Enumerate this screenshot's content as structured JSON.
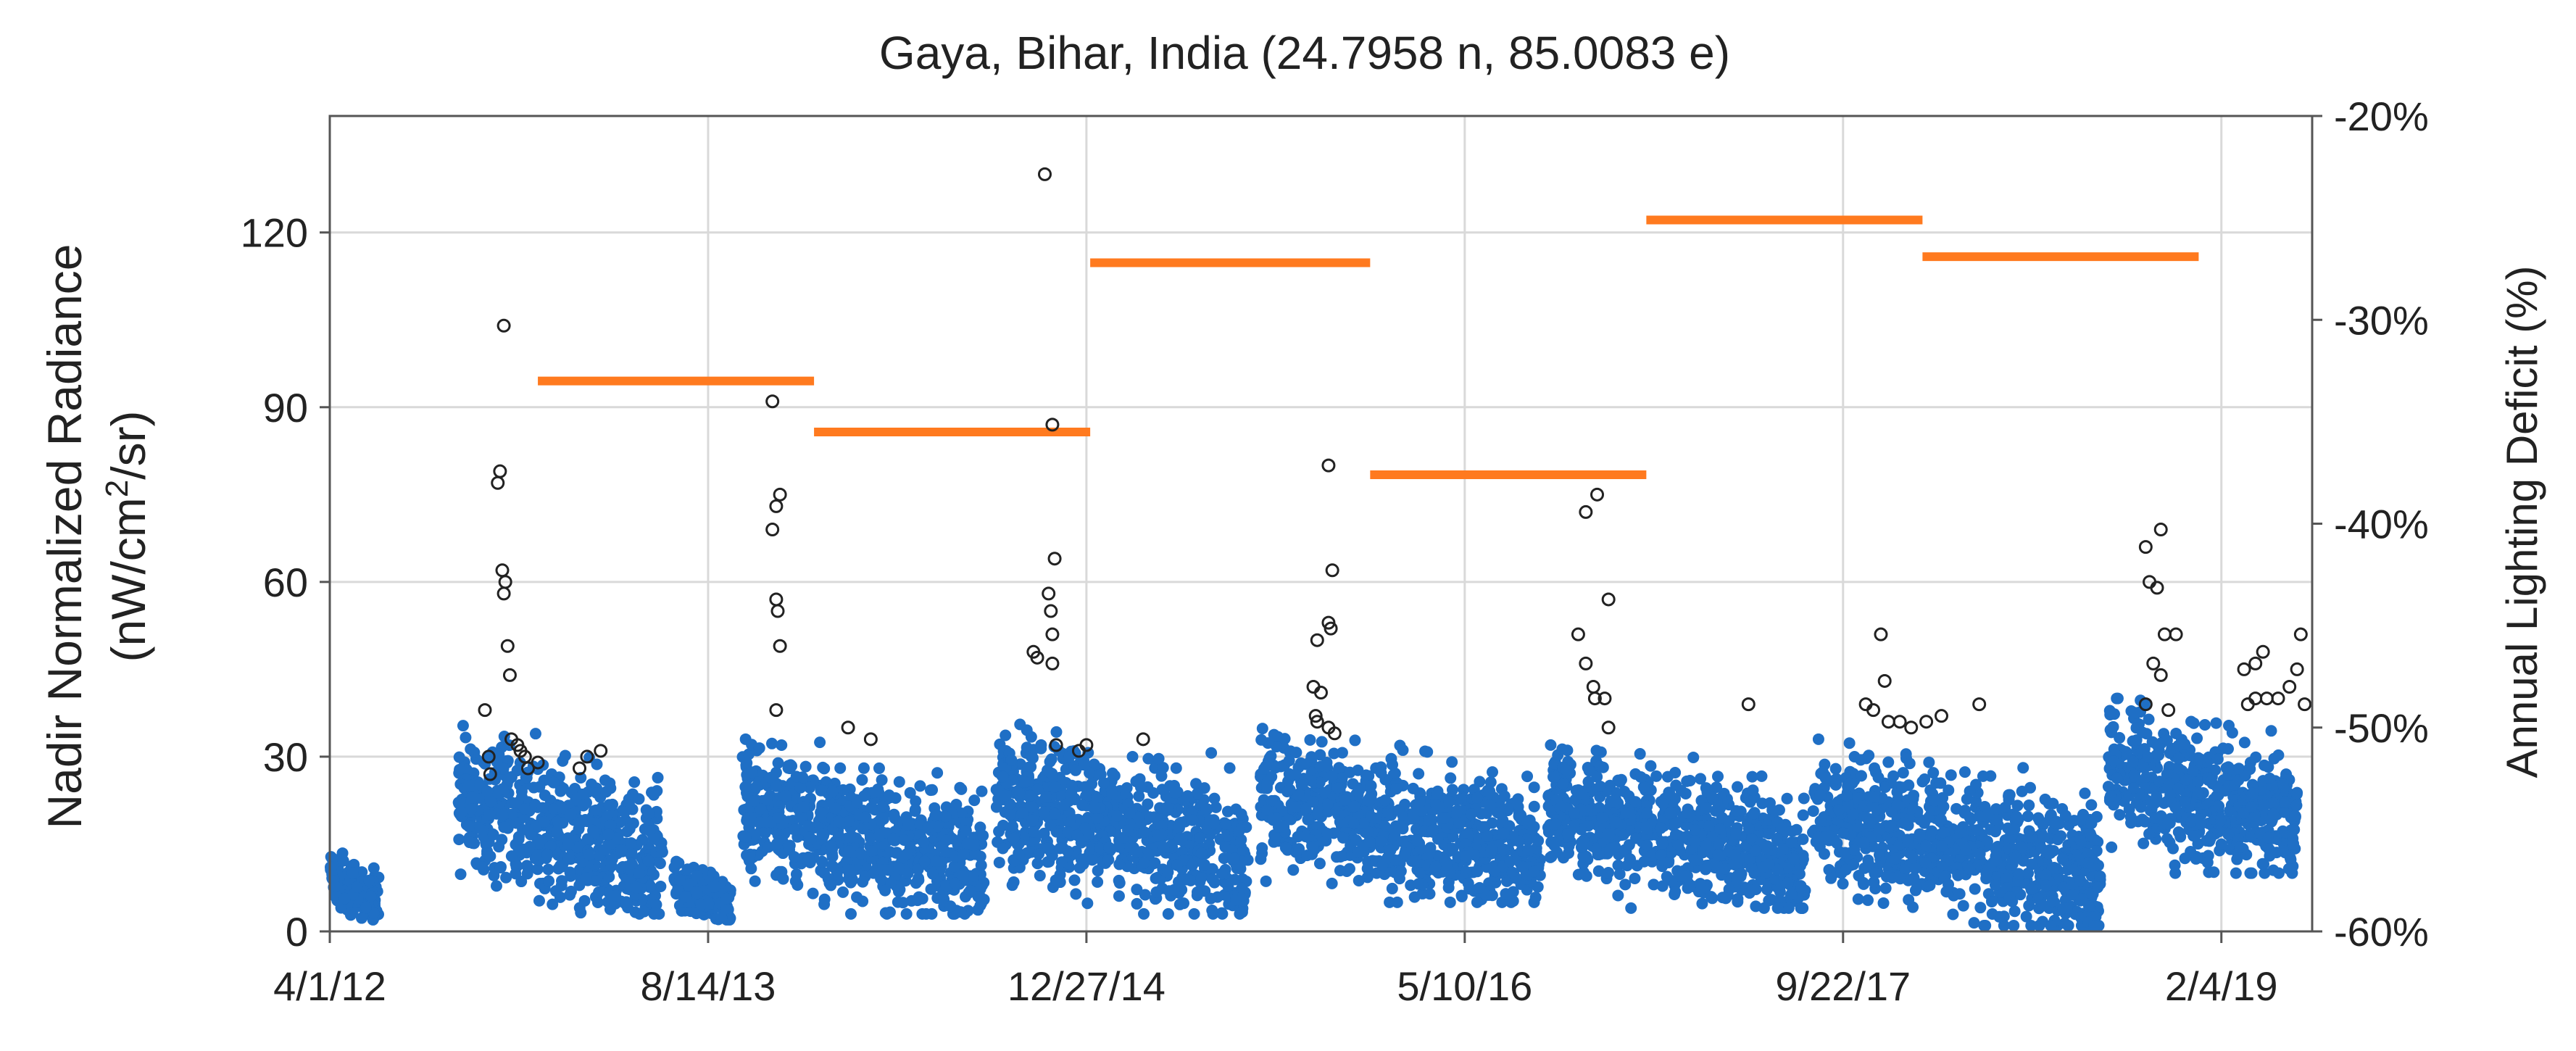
{
  "chart_data": {
    "type": "scatter",
    "title": "Gaya, Bihar, India (24.7958 n, 85.0083 e)",
    "ylabel_line1": "Nadir Normalized Radiance",
    "ylabel_line2_pre": "(nW/cm",
    "ylabel_line2_sup": "2",
    "ylabel_line2_post": "/sr)",
    "y2label": "Annual Lighting Deficit (%)",
    "x_ticks": [
      "4/1/12",
      "8/14/13",
      "12/27/14",
      "5/10/16",
      "9/22/17",
      "2/4/19"
    ],
    "x_tick_positions_days": [
      0,
      500,
      1000,
      1500,
      2000,
      2500
    ],
    "xlim_days": [
      0,
      2620
    ],
    "ylim": [
      0,
      140
    ],
    "y_ticks": [
      "0",
      "30",
      "60",
      "90",
      "120"
    ],
    "y_tick_values": [
      0,
      30,
      60,
      90,
      120
    ],
    "y2lim": [
      -60,
      -20
    ],
    "y2_ticks": [
      "-60%",
      "-50%",
      "-40%",
      "-30%",
      "-20%"
    ],
    "y2_tick_values": [
      -60,
      -50,
      -40,
      -30,
      -20
    ],
    "grid": "vertical",
    "colors": {
      "radiance": "#1f6fc5",
      "outlier": "#222222",
      "deficit": "#ff7a1f",
      "grid": "#d9d9d9",
      "axis": "#555555"
    },
    "series": [
      {
        "key": "radiance",
        "marker": "filled-circle",
        "clusters": [
          {
            "start": 0,
            "end": 65,
            "low": 2,
            "high": 14
          },
          {
            "start": 170,
            "end": 440,
            "low": 3,
            "high": 36
          },
          {
            "start": 455,
            "end": 530,
            "low": 2,
            "high": 12
          },
          {
            "start": 545,
            "end": 865,
            "low": 3,
            "high": 33
          },
          {
            "start": 880,
            "end": 1215,
            "low": 3,
            "high": 36
          },
          {
            "start": 1230,
            "end": 1600,
            "low": 5,
            "high": 35
          },
          {
            "start": 1610,
            "end": 1950,
            "low": 4,
            "high": 32
          },
          {
            "start": 1960,
            "end": 2340,
            "low": 1,
            "high": 33
          },
          {
            "start": 2350,
            "end": 2600,
            "low": 10,
            "high": 40
          }
        ]
      },
      {
        "key": "outliers",
        "marker": "open-circle",
        "points": [
          [
            230,
            104
          ],
          [
            225,
            79
          ],
          [
            222,
            77
          ],
          [
            228,
            62
          ],
          [
            232,
            60
          ],
          [
            230,
            58
          ],
          [
            235,
            49
          ],
          [
            238,
            44
          ],
          [
            205,
            38
          ],
          [
            210,
            30
          ],
          [
            212,
            27
          ],
          [
            240,
            33
          ],
          [
            248,
            32
          ],
          [
            252,
            31
          ],
          [
            258,
            30
          ],
          [
            262,
            28
          ],
          [
            275,
            29
          ],
          [
            330,
            28
          ],
          [
            340,
            30
          ],
          [
            358,
            31
          ],
          [
            585,
            91
          ],
          [
            595,
            75
          ],
          [
            590,
            73
          ],
          [
            585,
            69
          ],
          [
            590,
            57
          ],
          [
            592,
            55
          ],
          [
            595,
            49
          ],
          [
            590,
            38
          ],
          [
            685,
            35
          ],
          [
            715,
            33
          ],
          [
            945,
            130
          ],
          [
            955,
            87
          ],
          [
            958,
            64
          ],
          [
            950,
            58
          ],
          [
            953,
            55
          ],
          [
            955,
            51
          ],
          [
            930,
            48
          ],
          [
            935,
            47
          ],
          [
            955,
            46
          ],
          [
            960,
            32
          ],
          [
            990,
            31
          ],
          [
            1000,
            32
          ],
          [
            1075,
            33
          ],
          [
            1320,
            80
          ],
          [
            1325,
            62
          ],
          [
            1320,
            53
          ],
          [
            1323,
            52
          ],
          [
            1305,
            50
          ],
          [
            1300,
            42
          ],
          [
            1310,
            41
          ],
          [
            1320,
            35
          ],
          [
            1328,
            34
          ],
          [
            1303,
            37
          ],
          [
            1305,
            36
          ],
          [
            1660,
            72
          ],
          [
            1675,
            75
          ],
          [
            1690,
            57
          ],
          [
            1650,
            51
          ],
          [
            1660,
            46
          ],
          [
            1670,
            42
          ],
          [
            1672,
            40
          ],
          [
            1685,
            40
          ],
          [
            1690,
            35
          ],
          [
            1875,
            39
          ],
          [
            2030,
            39
          ],
          [
            2040,
            38
          ],
          [
            2055,
            43
          ],
          [
            2050,
            51
          ],
          [
            2060,
            36
          ],
          [
            2075,
            36
          ],
          [
            2090,
            35
          ],
          [
            2110,
            36
          ],
          [
            2130,
            37
          ],
          [
            2180,
            39
          ],
          [
            2400,
            66
          ],
          [
            2420,
            69
          ],
          [
            2405,
            60
          ],
          [
            2415,
            59
          ],
          [
            2410,
            46
          ],
          [
            2420,
            44
          ],
          [
            2400,
            39
          ],
          [
            2430,
            38
          ],
          [
            2425,
            51
          ],
          [
            2440,
            51
          ],
          [
            2530,
            45
          ],
          [
            2545,
            46
          ],
          [
            2555,
            48
          ],
          [
            2535,
            39
          ],
          [
            2545,
            40
          ],
          [
            2560,
            40
          ],
          [
            2575,
            40
          ],
          [
            2590,
            42
          ],
          [
            2600,
            45
          ],
          [
            2605,
            51
          ],
          [
            2610,
            39
          ]
        ]
      },
      {
        "key": "annual_deficit",
        "axis": "right",
        "marker": "horizontal-segment",
        "segments": [
          {
            "start": 275,
            "end": 640,
            "value": -33
          },
          {
            "start": 640,
            "end": 1005,
            "value": -35.5
          },
          {
            "start": 1005,
            "end": 1375,
            "value": -27.2
          },
          {
            "start": 1375,
            "end": 1740,
            "value": -37.6
          },
          {
            "start": 1740,
            "end": 2105,
            "value": -25.1
          },
          {
            "start": 2105,
            "end": 2470,
            "value": -26.9
          }
        ]
      }
    ]
  }
}
